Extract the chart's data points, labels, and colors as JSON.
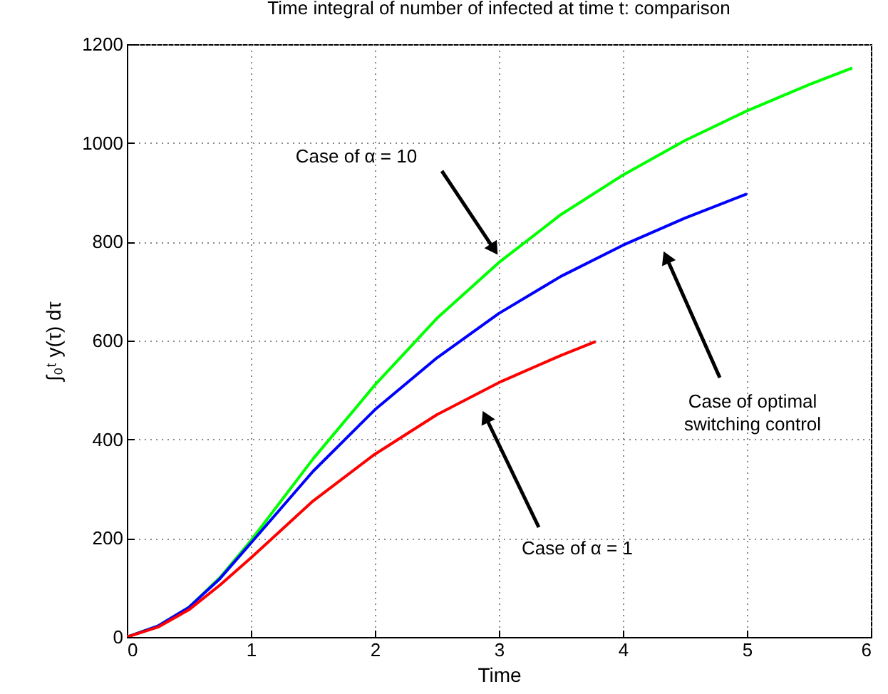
{
  "chart_data": {
    "type": "line",
    "title": "Time integral of number of infected at time t: comparison",
    "xlabel": "Time",
    "ylabel": "∫₀ᵗ y(τ) dτ",
    "xlim": [
      0,
      6
    ],
    "ylim": [
      0,
      1200
    ],
    "xticks": [
      0,
      1,
      2,
      3,
      4,
      5,
      6
    ],
    "yticks": [
      0,
      200,
      400,
      600,
      800,
      1000,
      1200
    ],
    "grid": true,
    "line_style": "solid",
    "series": [
      {
        "color": "#00ff00",
        "x": [
          0,
          0.25,
          0.5,
          0.75,
          1,
          1.5,
          2,
          2.5,
          3,
          3.5,
          4,
          4.5,
          5,
          5.5,
          5.85
        ],
        "values": [
          0,
          22,
          60,
          120,
          195,
          360,
          510,
          645,
          758,
          855,
          935,
          1005,
          1065,
          1118,
          1152
        ]
      },
      {
        "color": "#0000ff",
        "x": [
          0,
          0.25,
          0.5,
          0.75,
          1,
          1.5,
          2,
          2.5,
          3,
          3.5,
          4,
          4.5,
          5
        ],
        "values": [
          0,
          22,
          60,
          118,
          190,
          335,
          460,
          565,
          655,
          730,
          793,
          848,
          897
        ]
      },
      {
        "color": "#ff0000",
        "x": [
          0,
          0.25,
          0.5,
          0.75,
          1,
          1.5,
          2,
          2.5,
          3,
          3.5,
          3.78
        ],
        "values": [
          0,
          20,
          55,
          105,
          160,
          275,
          370,
          450,
          515,
          570,
          598
        ]
      }
    ],
    "annotations": [
      "Case of α = 10",
      "Case of optimal\nswitching control",
      "Case of α = 1"
    ]
  }
}
